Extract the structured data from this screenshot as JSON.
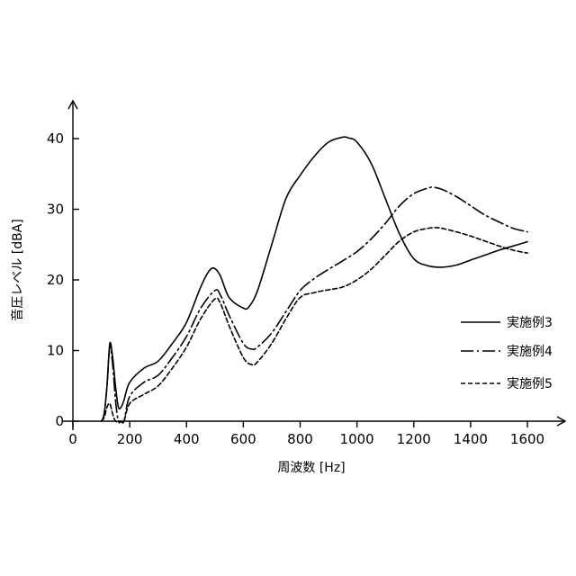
{
  "chart_data": {
    "type": "line",
    "xlabel": "周波数 [Hz]",
    "ylabel": "音圧レベル [dBA]",
    "xlim": [
      0,
      1700
    ],
    "ylim": [
      0,
      45
    ],
    "xticks": [
      0,
      200,
      400,
      600,
      800,
      1000,
      1200,
      1400,
      1600
    ],
    "yticks": [
      0,
      10,
      20,
      30,
      40
    ],
    "xtick_labels": [
      "0",
      "200",
      "400",
      "600",
      "800",
      "1000",
      "1200",
      "1400",
      "1600"
    ],
    "ytick_labels": [
      "0",
      "10",
      "20",
      "30",
      "40"
    ],
    "grid": false,
    "legend_position": "right",
    "series": [
      {
        "name": "実施例3",
        "dash": "solid",
        "x": [
          100,
          110,
          120,
          130,
          140,
          150,
          160,
          170,
          180,
          200,
          250,
          300,
          350,
          400,
          450,
          480,
          500,
          520,
          550,
          600,
          620,
          650,
          700,
          750,
          800,
          850,
          900,
          950,
          970,
          1000,
          1050,
          1100,
          1150,
          1200,
          1250,
          1300,
          1350,
          1400,
          1450,
          1500,
          1550,
          1600
        ],
        "y": [
          0,
          1,
          5,
          11,
          9,
          5,
          2,
          2,
          3,
          5.5,
          7.5,
          8.5,
          11,
          14,
          19,
          21.3,
          21.6,
          20.5,
          17.5,
          16,
          16.2,
          18.5,
          25,
          31.5,
          34.8,
          37.5,
          39.5,
          40.2,
          40.1,
          39.5,
          36.5,
          31.5,
          26.5,
          23,
          22,
          21.8,
          22.1,
          22.8,
          23.5,
          24.2,
          24.8,
          25.4
        ]
      },
      {
        "name": "実施例4",
        "dash": "dash-dot",
        "x": [
          100,
          110,
          120,
          130,
          140,
          150,
          160,
          170,
          180,
          200,
          250,
          300,
          350,
          400,
          450,
          500,
          520,
          550,
          600,
          630,
          650,
          700,
          750,
          800,
          850,
          900,
          950,
          1000,
          1050,
          1100,
          1150,
          1200,
          1250,
          1270,
          1300,
          1350,
          1400,
          1450,
          1500,
          1550,
          1600
        ],
        "y": [
          0,
          1,
          5,
          10.5,
          8,
          3,
          0,
          0,
          0,
          3.5,
          5.5,
          6.5,
          9,
          12,
          16,
          18.5,
          17.8,
          15,
          11,
          10.2,
          10.5,
          12.5,
          15.5,
          18.5,
          20.2,
          21.5,
          22.7,
          24,
          25.8,
          28,
          30.5,
          32.2,
          33,
          33.1,
          32.8,
          31.8,
          30.5,
          29.2,
          28.2,
          27.3,
          26.8
        ]
      },
      {
        "name": "実施例5",
        "dash": "dashed",
        "x": [
          100,
          110,
          120,
          130,
          140,
          150,
          160,
          170,
          180,
          200,
          250,
          300,
          350,
          400,
          450,
          500,
          520,
          550,
          600,
          630,
          650,
          700,
          750,
          800,
          850,
          900,
          950,
          1000,
          1050,
          1100,
          1150,
          1200,
          1250,
          1280,
          1300,
          1350,
          1400,
          1450,
          1500,
          1550,
          1600
        ],
        "y": [
          0,
          0.5,
          2,
          2.5,
          1,
          0,
          0,
          0,
          0,
          2.5,
          3.8,
          5,
          7.5,
          10.5,
          14.5,
          17.3,
          16.6,
          13.5,
          9,
          8,
          8.4,
          11,
          14.5,
          17.5,
          18.2,
          18.6,
          19,
          20,
          21.5,
          23.5,
          25.5,
          26.8,
          27.3,
          27.4,
          27.3,
          26.8,
          26.2,
          25.5,
          24.8,
          24.2,
          23.8
        ]
      }
    ]
  }
}
